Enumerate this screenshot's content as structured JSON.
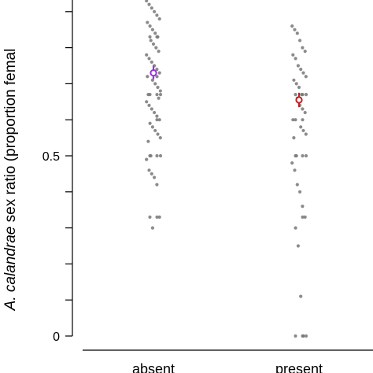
{
  "chart_data": {
    "type": "scatter",
    "title": "",
    "xlabel": "",
    "ylabel_italic": "A. calandrae",
    "ylabel_rest": " sex ratio (proportion femal",
    "categories": [
      "absent",
      "present"
    ],
    "ylim": [
      0,
      1
    ],
    "yticks": [
      0,
      0.1,
      0.2,
      0.3,
      0.4,
      0.5,
      0.6,
      0.7,
      0.8,
      0.9
    ],
    "ytick_labels": [
      {
        "value": 0,
        "label": "0"
      },
      {
        "value": 0.5,
        "label": "0.5"
      }
    ],
    "grid": false,
    "series": [
      {
        "category": "absent",
        "point_color": "#777777",
        "mean": 0.73,
        "ci": [
          0.713,
          0.75
        ],
        "mean_color": "#9b30e0",
        "points": [
          0.93,
          0.92,
          0.91,
          0.9,
          0.89,
          0.88,
          0.87,
          0.86,
          0.85,
          0.84,
          0.83,
          0.83,
          0.83,
          0.82,
          0.81,
          0.8,
          0.79,
          0.78,
          0.77,
          0.76,
          0.75,
          0.74,
          0.73,
          0.72,
          0.72,
          0.71,
          0.7,
          0.69,
          0.68,
          0.67,
          0.67,
          0.67,
          0.67,
          0.66,
          0.65,
          0.64,
          0.63,
          0.62,
          0.61,
          0.6,
          0.6,
          0.59,
          0.58,
          0.57,
          0.56,
          0.55,
          0.54,
          0.5,
          0.5,
          0.5,
          0.5,
          0.49,
          0.46,
          0.45,
          0.44,
          0.42,
          0.33,
          0.33,
          0.33,
          0.3
        ]
      },
      {
        "category": "present",
        "point_color": "#777777",
        "mean": 0.655,
        "ci": [
          0.635,
          0.675
        ],
        "mean_color": "#c02020",
        "points": [
          0.86,
          0.85,
          0.84,
          0.82,
          0.8,
          0.79,
          0.78,
          0.77,
          0.75,
          0.74,
          0.73,
          0.72,
          0.71,
          0.7,
          0.69,
          0.67,
          0.67,
          0.67,
          0.67,
          0.66,
          0.64,
          0.63,
          0.62,
          0.6,
          0.6,
          0.6,
          0.58,
          0.57,
          0.56,
          0.55,
          0.5,
          0.5,
          0.5,
          0.5,
          0.48,
          0.46,
          0.42,
          0.4,
          0.36,
          0.33,
          0.33,
          0.3,
          0.25,
          0.11,
          0.0,
          0.0,
          0.0,
          0.0
        ]
      }
    ]
  }
}
